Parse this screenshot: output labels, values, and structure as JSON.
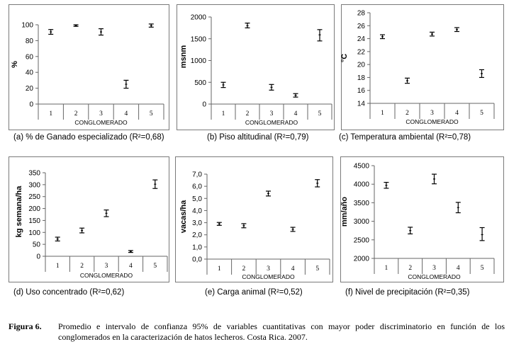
{
  "chart_data": [
    {
      "type": "scatter",
      "id": "a",
      "caption": "(a) % de Ganado especializado (R²=0,68)",
      "ylabel": "%",
      "xlabel": "CONGLOMERADO",
      "ylim": [
        0,
        100
      ],
      "yticks": [
        "0",
        "20",
        "40",
        "60",
        "80",
        "100"
      ],
      "ytick_values": [
        0,
        20,
        40,
        60,
        80,
        100
      ],
      "categories": [
        "1",
        "2",
        "3",
        "4",
        "5"
      ],
      "values": [
        91,
        99,
        91,
        25,
        99
      ],
      "ci_low": [
        88,
        98,
        87,
        20,
        97
      ],
      "ci_high": [
        94,
        100,
        95,
        30,
        101
      ]
    },
    {
      "type": "scatter",
      "id": "b",
      "caption": "(b) Piso altitudinal (R²=0,79)",
      "ylabel": "msnm",
      "xlabel": "CONGLOMERADO",
      "ylim": [
        0,
        2000
      ],
      "yticks": [
        "0",
        "500",
        "1000",
        "1500",
        "2000"
      ],
      "ytick_values": [
        0,
        500,
        1000,
        1500,
        2000
      ],
      "categories": [
        "1",
        "2",
        "3",
        "4",
        "5"
      ],
      "values": [
        440,
        1800,
        385,
        200,
        1590
      ],
      "ci_low": [
        380,
        1750,
        320,
        160,
        1450
      ],
      "ci_high": [
        500,
        1860,
        450,
        240,
        1710
      ]
    },
    {
      "type": "scatter",
      "id": "c",
      "caption": "(c) Temperatura ambiental (R²=0,78)",
      "ylabel": "°C",
      "xlabel": "CONGLOMERADO",
      "ylim": [
        14,
        28
      ],
      "yticks": [
        "14",
        "16",
        "18",
        "20",
        "22",
        "24",
        "26",
        "28"
      ],
      "ytick_values": [
        14,
        16,
        18,
        20,
        22,
        24,
        26,
        28
      ],
      "categories": [
        "1",
        "2",
        "3",
        "4",
        "5"
      ],
      "values": [
        24.3,
        17.5,
        24.7,
        25.4,
        18.6
      ],
      "ci_low": [
        24.0,
        17.1,
        24.4,
        25.1,
        18.0
      ],
      "ci_high": [
        24.6,
        17.9,
        25.0,
        25.7,
        19.2
      ]
    },
    {
      "type": "scatter",
      "id": "d",
      "caption": "(d) Uso concentrado (R²=0,62)",
      "ylabel": "kg semana/ha",
      "xlabel": "CONGLOMERADO",
      "ylim": [
        0,
        350
      ],
      "yticks": [
        "0",
        "50",
        "100",
        "150",
        "200",
        "250",
        "300",
        "350"
      ],
      "ytick_values": [
        0,
        50,
        100,
        150,
        200,
        250,
        300,
        350
      ],
      "categories": [
        "1",
        "2",
        "3",
        "4",
        "5"
      ],
      "values": [
        72,
        108,
        180,
        20,
        302
      ],
      "ci_low": [
        64,
        98,
        166,
        16,
        284
      ],
      "ci_high": [
        80,
        118,
        194,
        24,
        320
      ]
    },
    {
      "type": "scatter",
      "id": "e",
      "caption": "(e) Carga animal (R²=0,52)",
      "ylabel": "vacas/ha",
      "xlabel": "CONGLOMERADO",
      "ylim": [
        0,
        7
      ],
      "yticks": [
        "0,0",
        "1,0",
        "2,0",
        "3,0",
        "4,0",
        "5,0",
        "6,0",
        "7,0"
      ],
      "ytick_values": [
        0,
        1,
        2,
        3,
        4,
        5,
        6,
        7
      ],
      "categories": [
        "1",
        "2",
        "3",
        "4",
        "5"
      ],
      "values": [
        2.9,
        2.75,
        5.4,
        2.45,
        6.25
      ],
      "ci_low": [
        2.78,
        2.58,
        5.2,
        2.28,
        5.95
      ],
      "ci_high": [
        3.02,
        2.92,
        5.6,
        2.62,
        6.55
      ]
    },
    {
      "type": "scatter",
      "id": "f",
      "caption": "(f) Nivel de precipitación (R²=0,35)",
      "ylabel": "mm/año",
      "xlabel": "CONGLOMERADO",
      "ylim": [
        2000,
        4500
      ],
      "yticks": [
        "2000",
        "2500",
        "3000",
        "3500",
        "4000",
        "4500"
      ],
      "ytick_values": [
        2000,
        2500,
        3000,
        3500,
        4000,
        4500
      ],
      "categories": [
        "1",
        "2",
        "3",
        "4",
        "5"
      ],
      "values": [
        3970,
        2750,
        4140,
        3370,
        2640
      ],
      "ci_low": [
        3890,
        2660,
        4010,
        3230,
        2480
      ],
      "ci_high": [
        4050,
        2840,
        4270,
        3510,
        2830
      ]
    }
  ],
  "figure_caption": {
    "label": "Figura 6.",
    "text": "Promedio e intervalo de confianza 95% de variables cuantitativas con mayor poder discriminatorio en función de los conglomerados en la caracterización de hatos lecheros. Costa Rica. 2007."
  }
}
